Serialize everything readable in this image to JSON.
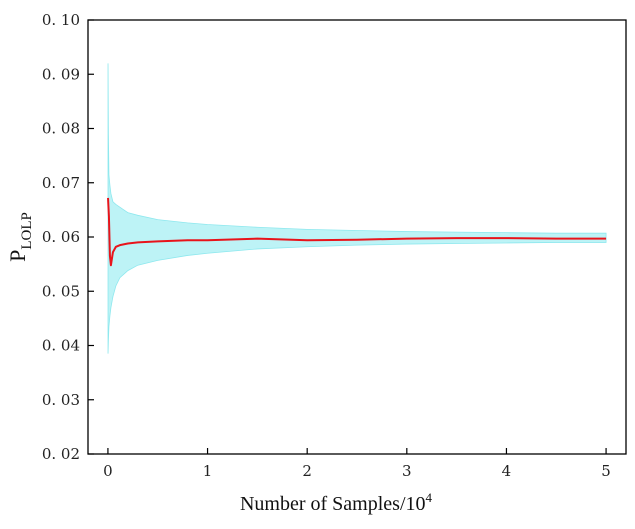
{
  "chart_data": {
    "type": "line",
    "xlabel": "Number of Samples/10",
    "xlabel_exponent": "4",
    "ylabel": "P",
    "ylabel_subscript": "LOLP",
    "xlim": [
      -0.2,
      5.2
    ],
    "ylim": [
      0.02,
      0.1
    ],
    "x_ticks": [
      0,
      1,
      2,
      3,
      4,
      5
    ],
    "x_tick_labels": [
      "0",
      "1",
      "2",
      "3",
      "4",
      "5"
    ],
    "y_ticks": [
      0.02,
      0.03,
      0.04,
      0.05,
      0.06,
      0.07,
      0.08,
      0.09,
      0.1
    ],
    "y_tick_labels": [
      "0. 02",
      "0. 03",
      "0. 04",
      "0. 05",
      "0. 06",
      "0. 07",
      "0. 08",
      "0. 09",
      "0. 10"
    ],
    "grid": false,
    "legend": "none",
    "colors": {
      "mean_line": "#e8141b",
      "band_fill": "#bdf3f6",
      "band_edge": "#8ee8ee",
      "axis": "#000000"
    },
    "series": [
      {
        "role": "mean",
        "x": [
          0.001,
          0.01,
          0.02,
          0.03,
          0.05,
          0.08,
          0.12,
          0.2,
          0.3,
          0.5,
          0.8,
          1.0,
          1.5,
          2.0,
          2.5,
          3.0,
          3.5,
          4.0,
          4.5,
          5.0
        ],
        "y": [
          0.0672,
          0.0638,
          0.0565,
          0.0548,
          0.0572,
          0.0582,
          0.0585,
          0.0588,
          0.059,
          0.0592,
          0.0594,
          0.0594,
          0.0597,
          0.0594,
          0.0595,
          0.0597,
          0.0598,
          0.0598,
          0.0597,
          0.0597
        ]
      },
      {
        "role": "confidence_band",
        "x": [
          0.001,
          0.005,
          0.01,
          0.02,
          0.03,
          0.05,
          0.08,
          0.12,
          0.2,
          0.3,
          0.5,
          0.8,
          1.0,
          1.5,
          2.0,
          2.5,
          3.0,
          3.5,
          4.0,
          4.5,
          5.0
        ],
        "upper": [
          0.092,
          0.079,
          0.0715,
          0.0695,
          0.068,
          0.0665,
          0.066,
          0.0655,
          0.0645,
          0.064,
          0.0632,
          0.0626,
          0.0623,
          0.0618,
          0.0614,
          0.0612,
          0.061,
          0.0609,
          0.0608,
          0.0607,
          0.0607
        ],
        "lower": [
          0.0385,
          0.041,
          0.0435,
          0.0455,
          0.047,
          0.049,
          0.051,
          0.0525,
          0.0538,
          0.0548,
          0.0557,
          0.0566,
          0.057,
          0.0578,
          0.0582,
          0.0585,
          0.0587,
          0.0588,
          0.0589,
          0.059,
          0.059
        ]
      }
    ]
  }
}
